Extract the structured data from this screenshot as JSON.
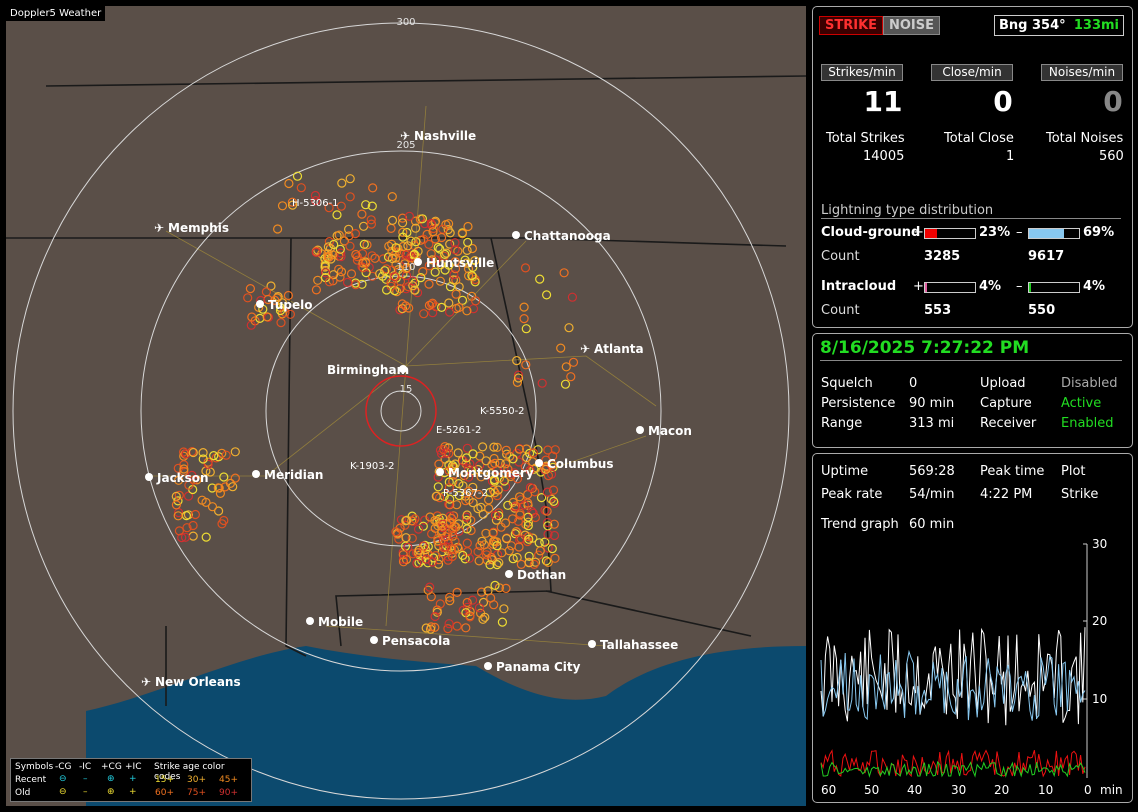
{
  "brand": "Doppler5 Weather",
  "map": {
    "range_rings": [
      "300",
      "205",
      "110",
      "15"
    ],
    "cities": [
      {
        "name": "Nashville",
        "airport": true
      },
      {
        "name": "Memphis",
        "airport": true
      },
      {
        "name": "Chattanooga",
        "airport": false
      },
      {
        "name": "Huntsville",
        "airport": false
      },
      {
        "name": "Tupelo",
        "airport": false
      },
      {
        "name": "Atlanta",
        "airport": true
      },
      {
        "name": "Birmingham",
        "airport": false
      },
      {
        "name": "Macon",
        "airport": false
      },
      {
        "name": "Columbus",
        "airport": false
      },
      {
        "name": "Montgomery",
        "airport": false
      },
      {
        "name": "Jackson",
        "airport": false
      },
      {
        "name": "Meridian",
        "airport": false
      },
      {
        "name": "Dothan",
        "airport": false
      },
      {
        "name": "Mobile",
        "airport": false
      },
      {
        "name": "Pensacola",
        "airport": false
      },
      {
        "name": "Tallahassee",
        "airport": false
      },
      {
        "name": "Panama City",
        "airport": false
      },
      {
        "name": "New Orleans",
        "airport": true
      }
    ],
    "cells": [
      "H-5306-1",
      "K-5550-2",
      "E-5261-2",
      "K-1903-2",
      "P-5367-2"
    ],
    "legend": {
      "symbols_label": "Symbols",
      "headers": [
        "-CG",
        "-IC",
        "+CG",
        "+IC"
      ],
      "age_label": "Strike age color codes",
      "recent": "Recent",
      "old": "Old",
      "recent_ages": [
        "15+",
        "30+",
        "45+"
      ],
      "old_ages": [
        "60+",
        "75+",
        "90+"
      ]
    }
  },
  "top": {
    "strike": "STRIKE",
    "noise": "NOISE",
    "bearing": "Bng 354°",
    "distance": "133mi",
    "rates": [
      {
        "label": "Strikes/min",
        "value": "11",
        "total_label": "Total Strikes",
        "total": "14005"
      },
      {
        "label": "Close/min",
        "value": "0",
        "total_label": "Total Close",
        "total": "1"
      },
      {
        "label": "Noises/min",
        "value": "0",
        "total_label": "Total Noises",
        "total": "560"
      }
    ],
    "dist_title": "Lightning type distribution",
    "cg_label": "Cloud-ground",
    "cg_pos_pct": "23%",
    "cg_neg_pct": "69%",
    "cg_pos_frac": 0.23,
    "cg_neg_frac": 0.69,
    "count_label": "Count",
    "cg_pos_count": "3285",
    "cg_neg_count": "9617",
    "ic_label": "Intracloud",
    "ic_pos_pct": "4%",
    "ic_neg_pct": "4%",
    "ic_pos_frac": 0.04,
    "ic_neg_frac": 0.04,
    "ic_pos_count": "553",
    "ic_neg_count": "550",
    "plus": "+",
    "minus": "–"
  },
  "mid": {
    "datetime": "8/16/2025 7:27:22 PM",
    "rows": [
      {
        "k": "Squelch",
        "v": "0",
        "k2": "Upload",
        "v2": "Disabled"
      },
      {
        "k": "Persistence",
        "v": "90 min",
        "k2": "Capture",
        "v2": "Active"
      },
      {
        "k": "Range",
        "v": "313 mi",
        "k2": "Receiver",
        "v2": "Enabled"
      }
    ]
  },
  "bottom": {
    "uptime_label": "Uptime",
    "uptime": "569:28",
    "peaktime_label": "Peak time",
    "plot_label": "Plot",
    "peakrate_label": "Peak rate",
    "peakrate": "54/min",
    "peaktime": "4:22 PM",
    "plot": "Strike",
    "trend_label": "Trend graph",
    "trend": "60 min",
    "y_ticks": [
      "30",
      "20",
      "10"
    ],
    "x_ticks": [
      "60",
      "50",
      "40",
      "30",
      "20",
      "10",
      "0"
    ],
    "x_unit": "min"
  },
  "colors": {
    "accent_green": "#22dd22",
    "strike_red": "#cc0000",
    "noise_grey": "#555555"
  }
}
